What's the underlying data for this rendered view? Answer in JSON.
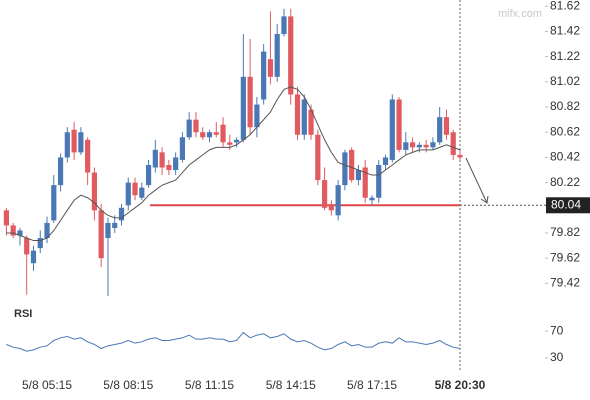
{
  "chart_data": {
    "type": "candlestick",
    "watermark": "mifx.com",
    "categories": [
      null,
      null,
      null,
      null,
      null,
      null,
      "5/8 05:15",
      null,
      null,
      null,
      null,
      null,
      null,
      null,
      null,
      null,
      null,
      null,
      "5/8 08:15",
      null,
      null,
      null,
      null,
      null,
      null,
      null,
      null,
      null,
      null,
      null,
      "5/8 11:15",
      null,
      null,
      null,
      null,
      null,
      null,
      null,
      null,
      null,
      null,
      null,
      "5/8 14:15",
      null,
      null,
      null,
      null,
      null,
      null,
      null,
      null,
      null,
      null,
      null,
      "5/8 17:15",
      null,
      null,
      null,
      null,
      null,
      null,
      null,
      null,
      null,
      null,
      null,
      null,
      "5/8 20:30"
    ],
    "open": [
      80.0,
      79.88,
      79.8,
      79.78,
      79.58,
      79.7,
      79.78,
      79.92,
      80.2,
      80.42,
      80.64,
      80.46,
      80.56,
      80.3,
      80.0,
      79.78,
      79.86,
      79.92,
      80.04,
      80.22,
      80.1,
      80.2,
      80.34,
      80.46,
      80.36,
      80.32,
      80.4,
      80.58,
      80.72,
      80.62,
      80.58,
      80.62,
      80.68,
      80.54,
      80.54,
      80.56,
      81.06,
      80.66,
      80.88,
      81.2,
      81.06,
      81.4,
      81.54,
      80.92,
      80.6,
      80.8,
      80.6,
      80.24,
      80.04,
      79.96,
      80.2,
      80.48,
      80.24,
      80.34,
      80.08,
      80.1,
      80.36,
      80.4,
      80.88,
      80.48,
      80.54,
      80.5,
      80.52,
      80.5,
      80.54,
      80.74,
      80.62,
      80.44
    ],
    "high": [
      80.02,
      79.9,
      79.86,
      79.8,
      79.72,
      79.84,
      79.95,
      80.28,
      80.45,
      80.66,
      80.7,
      80.66,
      80.58,
      80.34,
      80.05,
      79.94,
      79.96,
      80.05,
      80.26,
      80.26,
      80.22,
      80.4,
      80.56,
      80.5,
      80.4,
      80.46,
      80.62,
      80.78,
      80.78,
      80.66,
      80.64,
      80.7,
      80.74,
      80.6,
      80.58,
      81.4,
      81.36,
      80.9,
      81.32,
      81.58,
      81.48,
      81.6,
      81.6,
      80.98,
      80.92,
      80.84,
      80.64,
      80.34,
      80.08,
      80.24,
      80.48,
      80.5,
      80.36,
      80.4,
      80.12,
      80.4,
      80.44,
      80.92,
      80.9,
      80.62,
      80.58,
      80.54,
      80.56,
      80.58,
      80.82,
      80.8,
      80.64,
      80.48
    ],
    "low": [
      79.8,
      79.78,
      79.72,
      79.33,
      79.52,
      79.66,
      79.74,
      79.9,
      80.15,
      80.38,
      80.4,
      80.44,
      80.2,
      79.92,
      79.55,
      79.32,
      79.82,
      79.88,
      80.0,
      80.08,
      80.08,
      80.18,
      80.3,
      80.28,
      80.28,
      80.28,
      80.38,
      80.56,
      80.58,
      80.56,
      80.54,
      80.58,
      80.5,
      80.48,
      80.5,
      80.54,
      80.6,
      80.58,
      80.84,
      81.0,
      81.02,
      81.38,
      80.84,
      80.56,
      80.56,
      80.56,
      80.2,
      80.0,
      79.96,
      79.92,
      80.16,
      80.22,
      80.2,
      80.06,
      80.04,
      80.06,
      80.32,
      80.38,
      80.46,
      80.44,
      80.46,
      80.46,
      80.46,
      80.48,
      80.52,
      80.56,
      80.4,
      80.4
    ],
    "close": [
      79.88,
      79.8,
      79.84,
      79.65,
      79.68,
      79.78,
      79.9,
      80.2,
      80.42,
      80.62,
      80.46,
      80.62,
      80.3,
      80.0,
      79.62,
      79.9,
      79.9,
      80.02,
      80.22,
      80.12,
      80.18,
      80.36,
      80.48,
      80.34,
      80.32,
      80.42,
      80.58,
      80.72,
      80.62,
      80.58,
      80.62,
      80.6,
      80.54,
      80.52,
      80.56,
      81.06,
      80.66,
      80.84,
      81.26,
      81.06,
      81.4,
      81.54,
      80.92,
      80.6,
      80.88,
      80.6,
      80.24,
      80.02,
      80.0,
      80.2,
      80.46,
      80.24,
      80.32,
      80.1,
      80.1,
      80.36,
      80.42,
      80.88,
      80.48,
      80.54,
      80.5,
      80.52,
      80.5,
      80.54,
      80.74,
      80.6,
      80.44,
      80.42
    ],
    "ma": [
      79.82,
      79.82,
      79.8,
      79.78,
      79.76,
      79.76,
      79.78,
      79.84,
      79.92,
      80.0,
      80.08,
      80.12,
      80.1,
      80.06,
      80.0,
      79.96,
      79.94,
      79.94,
      79.98,
      80.02,
      80.06,
      80.12,
      80.16,
      80.2,
      80.22,
      80.24,
      80.3,
      80.36,
      80.4,
      80.44,
      80.48,
      80.5,
      80.5,
      80.5,
      80.52,
      80.56,
      80.6,
      80.66,
      80.72,
      80.78,
      80.88,
      80.96,
      80.98,
      80.96,
      80.9,
      80.8,
      80.68,
      80.56,
      80.46,
      80.38,
      80.36,
      80.34,
      80.32,
      80.3,
      80.28,
      80.28,
      80.32,
      80.36,
      80.4,
      80.44,
      80.46,
      80.48,
      80.48,
      80.48,
      80.5,
      80.52,
      80.5,
      80.48
    ],
    "up_color": "#4a78b5",
    "down_color": "#e05a5f",
    "ma_color": "#555555",
    "ylim": [
      79.28,
      81.67
    ],
    "yticks": [
      81.62,
      81.42,
      81.22,
      81.02,
      80.82,
      80.62,
      80.42,
      80.22,
      79.82,
      79.62,
      79.42
    ],
    "current_price": 80.04,
    "rsi": {
      "label": "RSI",
      "values": [
        50,
        46,
        44,
        40,
        42,
        46,
        48,
        56,
        60,
        62,
        58,
        60,
        54,
        50,
        44,
        48,
        50,
        52,
        56,
        52,
        54,
        58,
        60,
        56,
        56,
        58,
        60,
        64,
        58,
        58,
        60,
        58,
        58,
        54,
        56,
        68,
        60,
        64,
        66,
        60,
        62,
        66,
        58,
        54,
        56,
        52,
        46,
        42,
        44,
        50,
        54,
        48,
        50,
        46,
        46,
        52,
        54,
        52,
        60,
        54,
        54,
        52,
        50,
        52,
        56,
        50,
        46,
        44
      ],
      "color": "#4a78b5",
      "ylim": [
        0,
        100
      ],
      "yticks": [
        70,
        30
      ]
    }
  }
}
